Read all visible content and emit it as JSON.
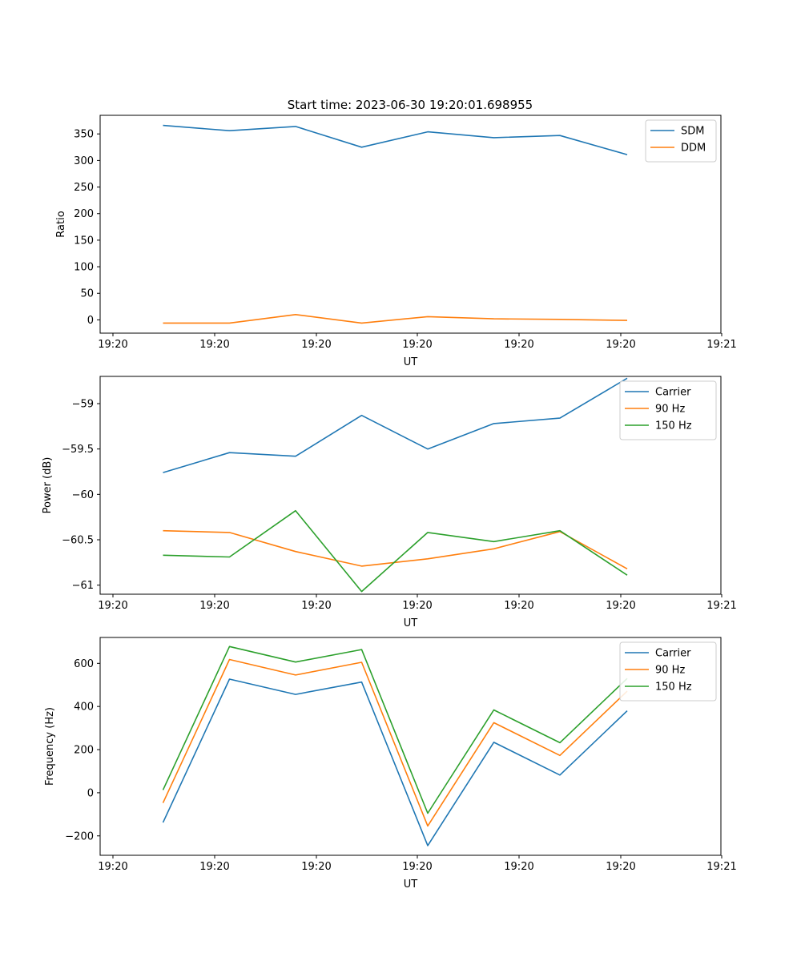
{
  "title": "Start time: 2023-06-30 19:20:01.698955",
  "chart_data": [
    {
      "type": "line",
      "title": "Start time: 2023-06-30 19:20:01.698955",
      "xlabel": "UT",
      "ylabel": "Ratio",
      "x_tick_labels": [
        "19:20",
        "19:20",
        "19:20",
        "19:20",
        "19:20",
        "19:20",
        "19:21"
      ],
      "y_ticks": [
        0,
        50,
        100,
        150,
        200,
        250,
        300,
        350
      ],
      "ylim": [
        -25,
        385
      ],
      "legend": "top-right",
      "series": [
        {
          "name": "SDM",
          "color": "#1f77b4",
          "values": [
            366,
            356,
            364,
            325,
            354,
            343,
            347,
            311
          ]
        },
        {
          "name": "DDM",
          "color": "#ff7f0e",
          "values": [
            -6,
            -6,
            10,
            -6,
            6,
            2,
            1,
            -1
          ]
        }
      ]
    },
    {
      "type": "line",
      "xlabel": "UT",
      "ylabel": "Power (dB)",
      "x_tick_labels": [
        "19:20",
        "19:20",
        "19:20",
        "19:20",
        "19:20",
        "19:20",
        "19:21"
      ],
      "y_ticks": [
        -61.0,
        -60.5,
        -60.0,
        -59.5,
        -59.0
      ],
      "ylim": [
        -61.1,
        -58.7
      ],
      "legend": "top-right",
      "series": [
        {
          "name": "Carrier",
          "color": "#1f77b4",
          "values": [
            -59.76,
            -59.54,
            -59.58,
            -59.13,
            -59.5,
            -59.22,
            -59.16,
            -58.72
          ]
        },
        {
          "name": "90 Hz",
          "color": "#ff7f0e",
          "values": [
            -60.4,
            -60.42,
            -60.63,
            -60.79,
            -60.71,
            -60.6,
            -60.41,
            -60.82
          ]
        },
        {
          "name": "150 Hz",
          "color": "#2ca02c",
          "values": [
            -60.67,
            -60.69,
            -60.18,
            -61.07,
            -60.42,
            -60.52,
            -60.4,
            -60.89
          ]
        }
      ]
    },
    {
      "type": "line",
      "xlabel": "UT",
      "ylabel": "Frequency (Hz)",
      "x_tick_labels": [
        "19:20",
        "19:20",
        "19:20",
        "19:20",
        "19:20",
        "19:20",
        "19:21"
      ],
      "y_ticks": [
        -200,
        0,
        200,
        400,
        600
      ],
      "ylim": [
        -290,
        720
      ],
      "legend": "top-right",
      "series": [
        {
          "name": "Carrier",
          "color": "#1f77b4",
          "values": [
            -138,
            527,
            456,
            513,
            -245,
            234,
            82,
            380
          ]
        },
        {
          "name": "90 Hz",
          "color": "#ff7f0e",
          "values": [
            -47,
            618,
            546,
            605,
            -154,
            325,
            173,
            471
          ]
        },
        {
          "name": "150 Hz",
          "color": "#2ca02c",
          "values": [
            13,
            678,
            606,
            664,
            -95,
            384,
            232,
            530
          ]
        }
      ]
    }
  ]
}
